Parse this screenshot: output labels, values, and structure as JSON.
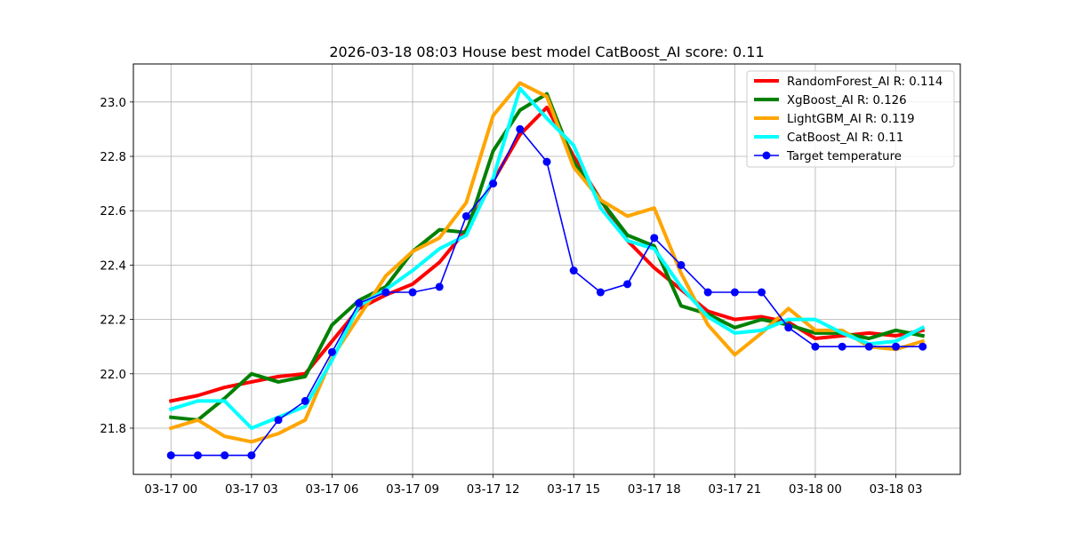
{
  "chart_data": {
    "type": "line",
    "title": "2026-03-18 08:03 House best model CatBoost_AI score: 0.11",
    "xlabel": "",
    "ylabel": "",
    "x_tick_labels": [
      "03-17 00",
      "03-17 03",
      "03-17 06",
      "03-17 09",
      "03-17 12",
      "03-17 15",
      "03-17 18",
      "03-17 21",
      "03-18 00",
      "03-18 03"
    ],
    "x_ticks_hours": [
      0,
      3,
      6,
      9,
      12,
      15,
      18,
      21,
      24,
      27
    ],
    "x_hours": [
      0,
      1,
      2,
      3,
      4,
      5,
      6,
      7,
      8,
      9,
      10,
      11,
      12,
      13,
      14,
      15,
      16,
      17,
      18,
      19,
      20,
      21,
      22,
      23,
      24,
      25,
      26,
      27,
      28
    ],
    "xlim_hours": [
      -1.4,
      29.4
    ],
    "ylim": [
      21.63,
      23.14
    ],
    "y_ticks": [
      "21.8",
      "22.0",
      "22.2",
      "22.4",
      "22.6",
      "22.8",
      "23.0"
    ],
    "grid": true,
    "legend_position": "upper right",
    "series": [
      {
        "name": "RandomForest_AI R: 0.114",
        "color": "#ff0000",
        "style": "thick-line",
        "values": [
          21.9,
          21.92,
          21.95,
          21.97,
          21.99,
          22.0,
          22.12,
          22.24,
          22.29,
          22.33,
          22.41,
          22.53,
          22.71,
          22.88,
          22.98,
          22.8,
          22.64,
          22.49,
          22.39,
          22.31,
          22.23,
          22.2,
          22.21,
          22.19,
          22.13,
          22.14,
          22.15,
          22.14,
          22.16
        ]
      },
      {
        "name": "XgBoost_AI R: 0.126",
        "color": "#008000",
        "style": "thick-line",
        "values": [
          21.84,
          21.83,
          21.91,
          22.0,
          21.97,
          21.99,
          22.18,
          22.27,
          22.32,
          22.45,
          22.53,
          22.52,
          22.82,
          22.97,
          23.03,
          22.78,
          22.64,
          22.51,
          22.47,
          22.25,
          22.22,
          22.17,
          22.2,
          22.18,
          22.15,
          22.15,
          22.13,
          22.16,
          22.14
        ]
      },
      {
        "name": "LightGBM_AI R: 0.119",
        "color": "#ffa500",
        "style": "thick-line",
        "values": [
          21.8,
          21.83,
          21.77,
          21.75,
          21.78,
          21.83,
          22.06,
          22.21,
          22.36,
          22.45,
          22.5,
          22.63,
          22.95,
          23.07,
          23.02,
          22.76,
          22.64,
          22.58,
          22.61,
          22.37,
          22.18,
          22.07,
          22.15,
          22.24,
          22.16,
          22.16,
          22.1,
          22.09,
          22.12
        ]
      },
      {
        "name": "CatBoost_AI R: 0.11",
        "color": "#00ffff",
        "style": "thick-line",
        "values": [
          21.87,
          21.9,
          21.9,
          21.8,
          21.84,
          21.88,
          22.05,
          22.25,
          22.31,
          22.38,
          22.46,
          22.51,
          22.72,
          23.05,
          22.94,
          22.84,
          22.61,
          22.49,
          22.46,
          22.32,
          22.21,
          22.15,
          22.16,
          22.2,
          22.2,
          22.15,
          22.11,
          22.12,
          22.17
        ]
      },
      {
        "name": "Target temperature",
        "color": "#0000ff",
        "style": "thin-line-markers",
        "values": [
          21.7,
          21.7,
          21.7,
          21.7,
          21.83,
          21.9,
          22.08,
          22.26,
          22.3,
          22.3,
          22.32,
          22.58,
          22.7,
          22.9,
          22.78,
          22.38,
          22.3,
          22.33,
          22.5,
          22.4,
          22.3,
          22.3,
          22.3,
          22.17,
          22.1,
          22.1,
          22.1,
          22.1,
          22.1
        ]
      }
    ]
  }
}
